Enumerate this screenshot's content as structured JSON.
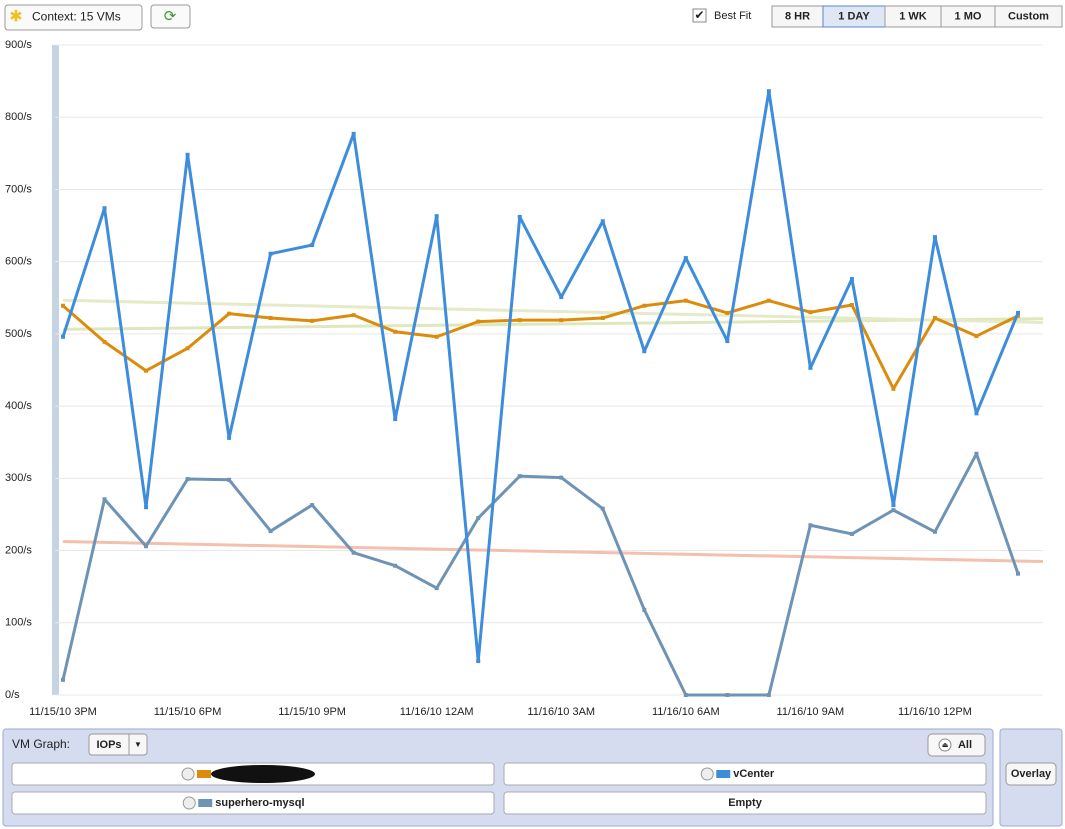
{
  "toolbar": {
    "context": "Context: 15 VMs",
    "best_fit_label": "Best Fit",
    "ranges": [
      "8 HR",
      "1 DAY",
      "1 WK",
      "1 MO",
      "Custom"
    ],
    "selected_range": 1
  },
  "chart_data": {
    "type": "line",
    "categories": [
      "11/15/10 3PM",
      null,
      null,
      "11/15/10 6PM",
      null,
      null,
      "11/15/10 9PM",
      null,
      null,
      "11/16/10 12AM",
      null,
      null,
      "11/16/10 3AM",
      null,
      null,
      "11/16/10 6AM",
      null,
      null,
      "11/16/10 9AM",
      null,
      null,
      "11/16/10 12PM",
      null,
      null
    ],
    "ylim": [
      0,
      900
    ],
    "yticks": [
      {
        "value": 0,
        "label": "0/s"
      },
      {
        "value": 100,
        "label": "100/s"
      },
      {
        "value": 200,
        "label": "200/s"
      },
      {
        "value": 300,
        "label": "300/s"
      },
      {
        "value": 400,
        "label": "400/s"
      },
      {
        "value": 500,
        "label": "500/s"
      },
      {
        "value": 600,
        "label": "600/s"
      },
      {
        "value": 700,
        "label": "700/s"
      },
      {
        "value": 800,
        "label": "800/s"
      },
      {
        "value": 900,
        "label": "900/s"
      }
    ],
    "grid": true,
    "best_fit": true,
    "series": [
      {
        "color": "#6f93b4",
        "fit_color": "#f4c0ad",
        "name": "superhero-mysql",
        "values": [
          21,
          271,
          206,
          299,
          298,
          227,
          263,
          197,
          179,
          148,
          245,
          303,
          301,
          258,
          118,
          0,
          0,
          0,
          235,
          223,
          256,
          226,
          334,
          168
        ]
      },
      {
        "color": "#dc8c0c",
        "fit_color": "#dfe8bd",
        "values": [
          539,
          489,
          449,
          480,
          528,
          522,
          518,
          526,
          503,
          496,
          517,
          519,
          519,
          522,
          539,
          546,
          529,
          546,
          530,
          540,
          424,
          522,
          497,
          525
        ]
      },
      {
        "color": "#3e8ddc",
        "fit_color": "#e4ebc6",
        "name": "vCenter",
        "values": [
          496,
          674,
          260,
          748,
          356,
          611,
          623,
          777,
          382,
          663,
          47,
          662,
          551,
          656,
          476,
          605,
          490,
          836,
          453,
          576,
          263,
          634,
          390,
          529
        ]
      }
    ]
  },
  "panel": {
    "label": "VM Graph:",
    "metric": "IOPs",
    "all": "All",
    "slots": [
      1,
      2,
      0
    ],
    "empty_slot": "Empty",
    "overlay": "Overlay"
  }
}
